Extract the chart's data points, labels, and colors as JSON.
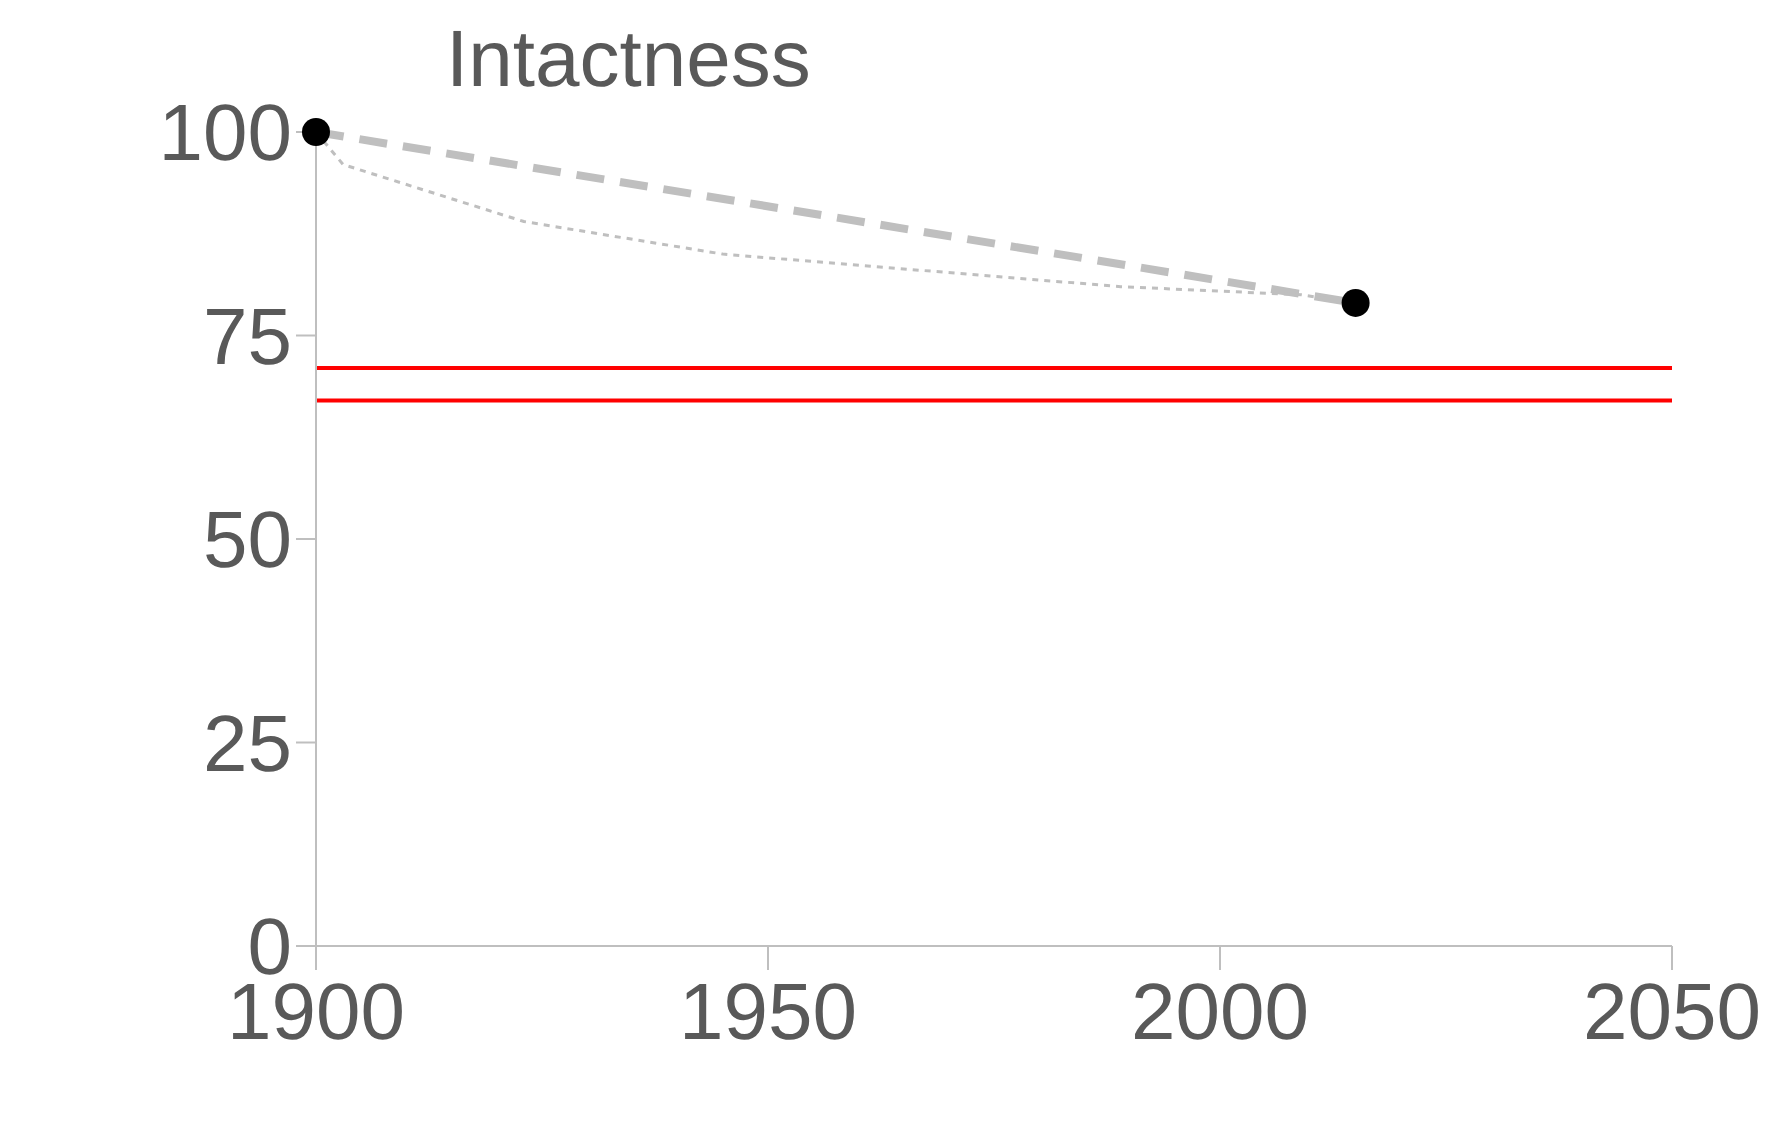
{
  "chart_data": {
    "type": "line",
    "title": "Intactness",
    "series": [
      {
        "type": "line",
        "color": "#bfbfbf",
        "line_style": "dashed",
        "marker": "none",
        "x": [
          1900,
          2015
        ],
        "values": [
          100,
          79
        ]
      },
      {
        "type": "line",
        "color": "#bfbfbf",
        "line_style": "dotted",
        "marker": "none",
        "x": [
          1900,
          1903,
          1923,
          1945,
          1967,
          1989,
          2009,
          2015
        ],
        "values": [
          100,
          96,
          89,
          85,
          83,
          81,
          80,
          79
        ]
      },
      {
        "type": "scatter",
        "color": "#000000",
        "marker": "circle",
        "x": [
          1900,
          2015
        ],
        "values": [
          100,
          79
        ]
      }
    ],
    "ref_lines": [
      {
        "axis": "y",
        "value": 71,
        "color": "#ff0000"
      },
      {
        "axis": "y",
        "value": 67,
        "color": "#ff0000"
      }
    ],
    "xlim": [
      1900,
      2050
    ],
    "xticks": [
      1900,
      1950,
      2000,
      2050
    ],
    "ylim": [
      0,
      100
    ],
    "yticks": [
      0,
      25,
      50,
      75,
      100
    ],
    "grid": false,
    "legend": false
  }
}
